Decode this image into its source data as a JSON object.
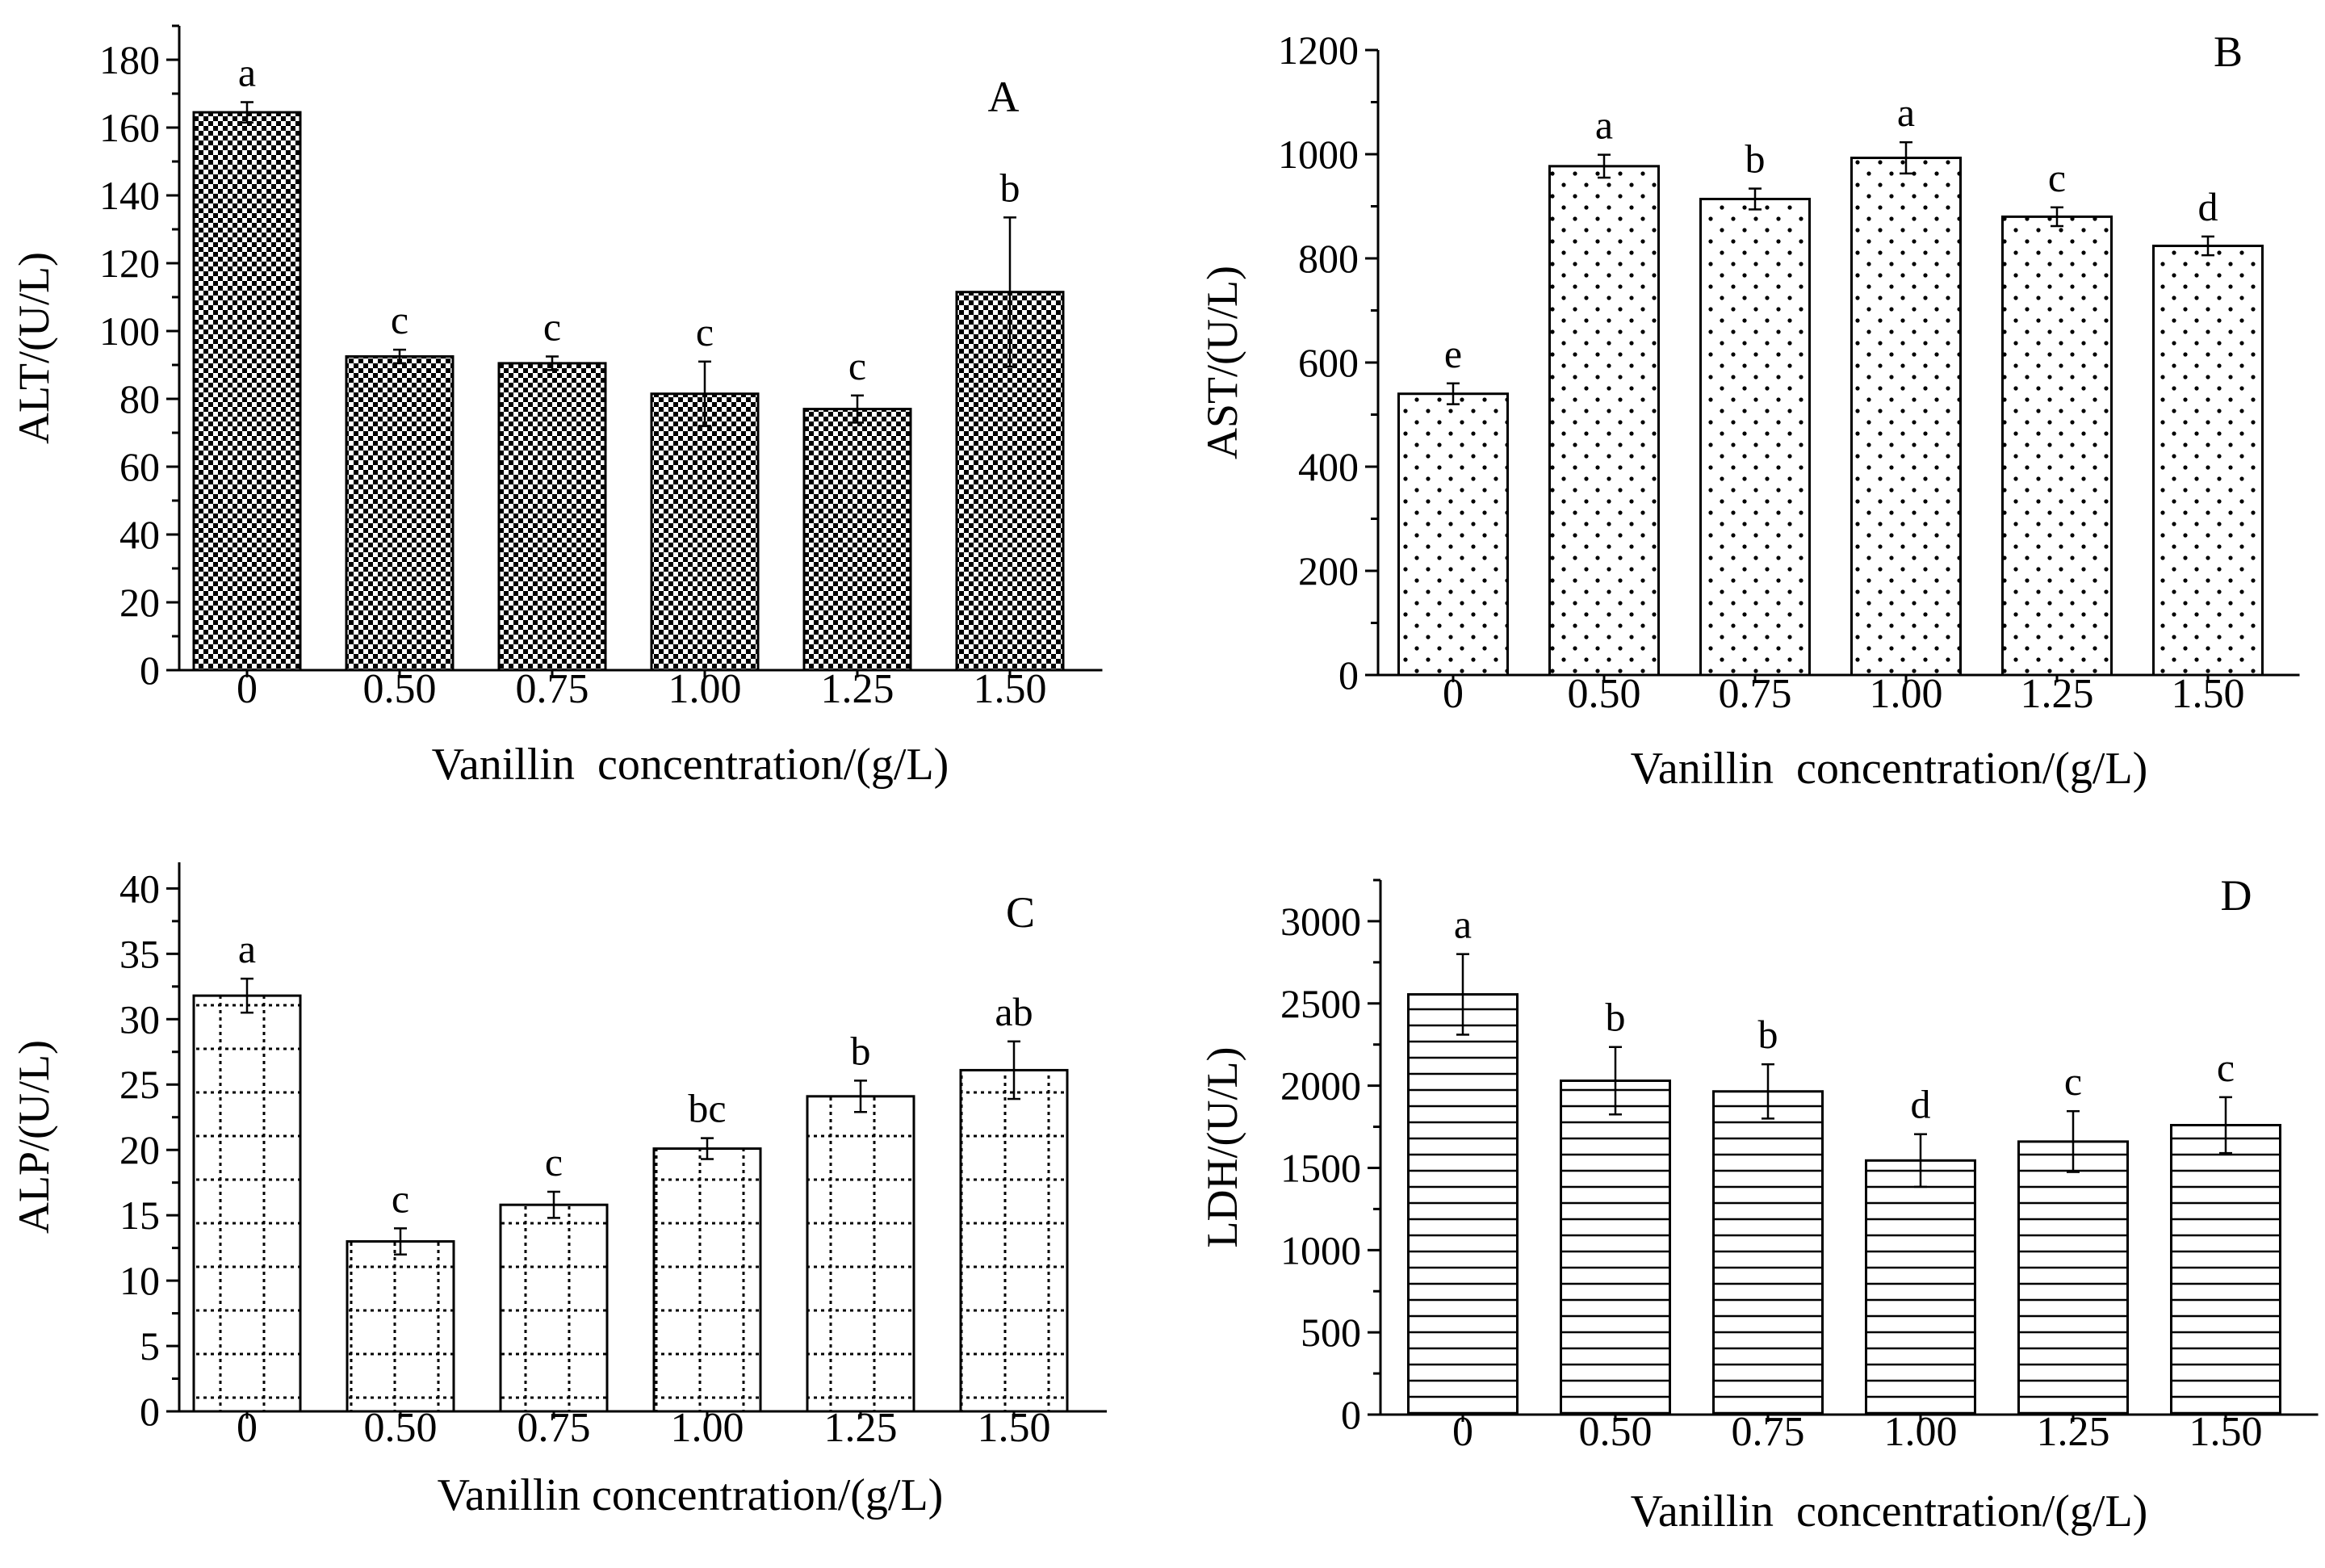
{
  "chart_data": [
    {
      "type": "bar",
      "panel_label": "A",
      "pattern": "checker",
      "categories": [
        "0",
        "0.50",
        "0.75",
        "1.00",
        "1.25",
        "1.50"
      ],
      "values": [
        164.5,
        92.5,
        90.5,
        81.5,
        77.0,
        111.5
      ],
      "errors": [
        3,
        2,
        2,
        9.5,
        4,
        22
      ],
      "significance": [
        "a",
        "c",
        "c",
        "c",
        "c",
        "b"
      ],
      "xlabel": "Vanillin  concentration/(g/L)",
      "ylabel": "ALT/(U/L)",
      "ylim": [
        0,
        190
      ],
      "yticks": [
        0,
        20,
        40,
        60,
        80,
        100,
        120,
        140,
        160,
        180
      ],
      "ytick_labels": [
        "0",
        "20",
        "40",
        "60",
        "80",
        "100",
        "120",
        "140",
        "160",
        "180"
      ]
    },
    {
      "type": "bar",
      "panel_label": "B",
      "pattern": "dots",
      "categories": [
        "0",
        "0.50",
        "0.75",
        "1.00",
        "1.25",
        "1.50"
      ],
      "values": [
        540,
        977,
        914,
        993,
        880,
        824
      ],
      "errors": [
        20,
        22,
        20,
        30,
        18,
        18
      ],
      "significance": [
        "e",
        "a",
        "b",
        "a",
        "c",
        "d"
      ],
      "xlabel": "Vanillin  concentration/(g/L)",
      "ylabel": "AST/(U/L)",
      "ylim": [
        0,
        1200
      ],
      "yticks": [
        0,
        200,
        400,
        600,
        800,
        1000,
        1200
      ],
      "ytick_labels": [
        "0",
        "200",
        "400",
        "600",
        "800",
        "1000",
        "1200"
      ]
    },
    {
      "type": "bar",
      "panel_label": "C",
      "pattern": "dotted-grid",
      "categories": [
        "0",
        "0.50",
        "0.75",
        "1.00",
        "1.25",
        "1.50"
      ],
      "values": [
        31.8,
        13.0,
        15.8,
        20.1,
        24.1,
        26.1
      ],
      "errors": [
        1.3,
        1.0,
        1.0,
        0.8,
        1.2,
        2.2
      ],
      "significance": [
        "a",
        "c",
        "c",
        "bc",
        "b",
        "ab"
      ],
      "xlabel": "Vanillin concentration/(g/L)",
      "ylabel": "ALP/(U/L)",
      "ylim": [
        0,
        42
      ],
      "yticks": [
        0,
        5,
        10,
        15,
        20,
        25,
        30,
        35,
        40
      ],
      "ytick_labels": [
        "0",
        "5",
        "10",
        "15",
        "20",
        "25",
        "30",
        "35",
        "40"
      ]
    },
    {
      "type": "bar",
      "panel_label": "D",
      "pattern": "hlines",
      "categories": [
        "0",
        "0.50",
        "0.75",
        "1.00",
        "1.25",
        "1.50"
      ],
      "values": [
        2555,
        2030,
        1965,
        1545,
        1660,
        1760
      ],
      "errors": [
        245,
        205,
        165,
        160,
        185,
        170
      ],
      "significance": [
        "a",
        "b",
        "b",
        "d",
        "c",
        "c"
      ],
      "xlabel": "Vanillin  concentration/(g/L)",
      "ylabel": "LDH/(U/L)",
      "ylim": [
        0,
        3250
      ],
      "yticks": [
        0,
        500,
        1000,
        1500,
        2000,
        2500,
        3000
      ],
      "ytick_labels": [
        "0",
        "500",
        "1000",
        "1500",
        "2000",
        "2500",
        "3000"
      ]
    }
  ]
}
